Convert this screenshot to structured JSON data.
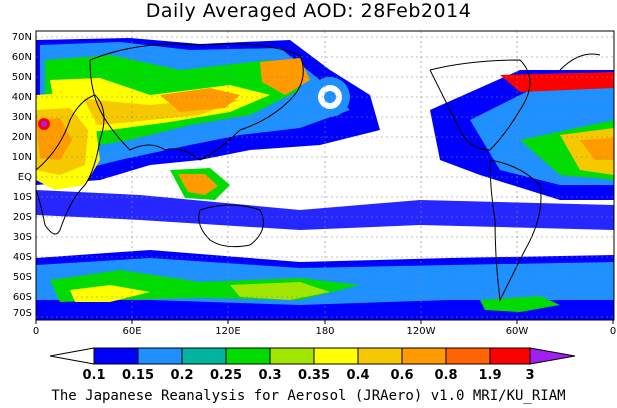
{
  "title": "Daily Averaged AOD: 28Feb2014",
  "lat_labels": [
    "70N",
    "60N",
    "50N",
    "40N",
    "30N",
    "20N",
    "10N",
    "EQ",
    "10S",
    "20S",
    "30S",
    "40S",
    "50S",
    "60S",
    "70S"
  ],
  "lon_labels": [
    "0",
    "60E",
    "120E",
    "180",
    "120W",
    "60W",
    "0"
  ],
  "colorbar": {
    "labels": [
      "0.1",
      "0.15",
      "0.2",
      "0.25",
      "0.3",
      "0.35",
      "0.4",
      "0.6",
      "0.8",
      "1.9",
      "3"
    ],
    "colors": [
      "#ffffff",
      "#0000ff",
      "#1e90ff",
      "#00b4a0",
      "#00dc00",
      "#a0e600",
      "#ffff00",
      "#f5c800",
      "#ff9a00",
      "#ff6400",
      "#ff0000",
      "#a020f0"
    ]
  },
  "credit": "The Japanese Reanalysis for Aerosol (JRAero) v1.0 MRI/KU_RIAM"
}
